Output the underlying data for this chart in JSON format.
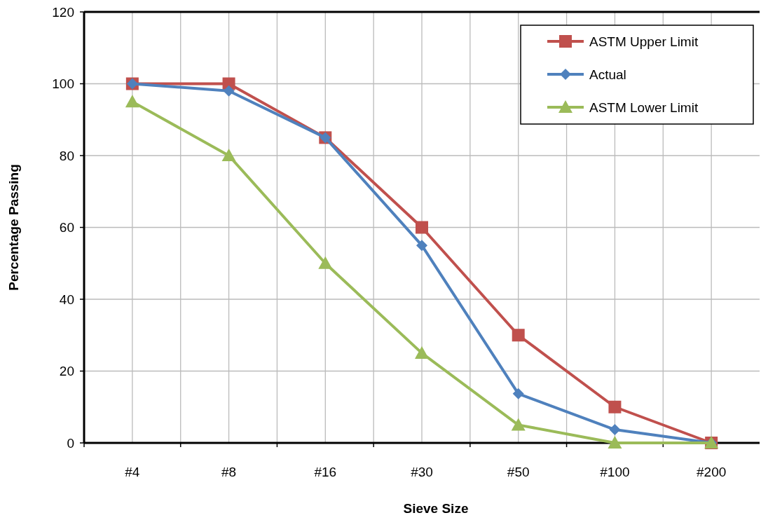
{
  "chart_data": {
    "type": "line",
    "xlabel": "Sieve Size",
    "ylabel": "Percentage Passing",
    "categories": [
      "#4",
      "#8",
      "#16",
      "#30",
      "#50",
      "#100",
      "#200"
    ],
    "series": [
      {
        "name": "ASTM Upper Limit",
        "color": "#c0504d",
        "marker": "square",
        "values": [
          100,
          100,
          85,
          60,
          30,
          10,
          0
        ]
      },
      {
        "name": "Actual",
        "color": "#4f81bd",
        "marker": "diamond",
        "values": [
          100,
          98,
          85,
          55,
          13.7,
          3.7,
          0
        ]
      },
      {
        "name": "ASTM Lower Limit",
        "color": "#9bbb59",
        "marker": "triangle",
        "values": [
          95,
          80,
          50,
          25,
          5,
          0,
          0
        ]
      }
    ],
    "ylim": [
      0,
      120
    ],
    "yticks": [
      0,
      20,
      40,
      60,
      80,
      100,
      120
    ],
    "grid": true,
    "legend": "top right"
  }
}
